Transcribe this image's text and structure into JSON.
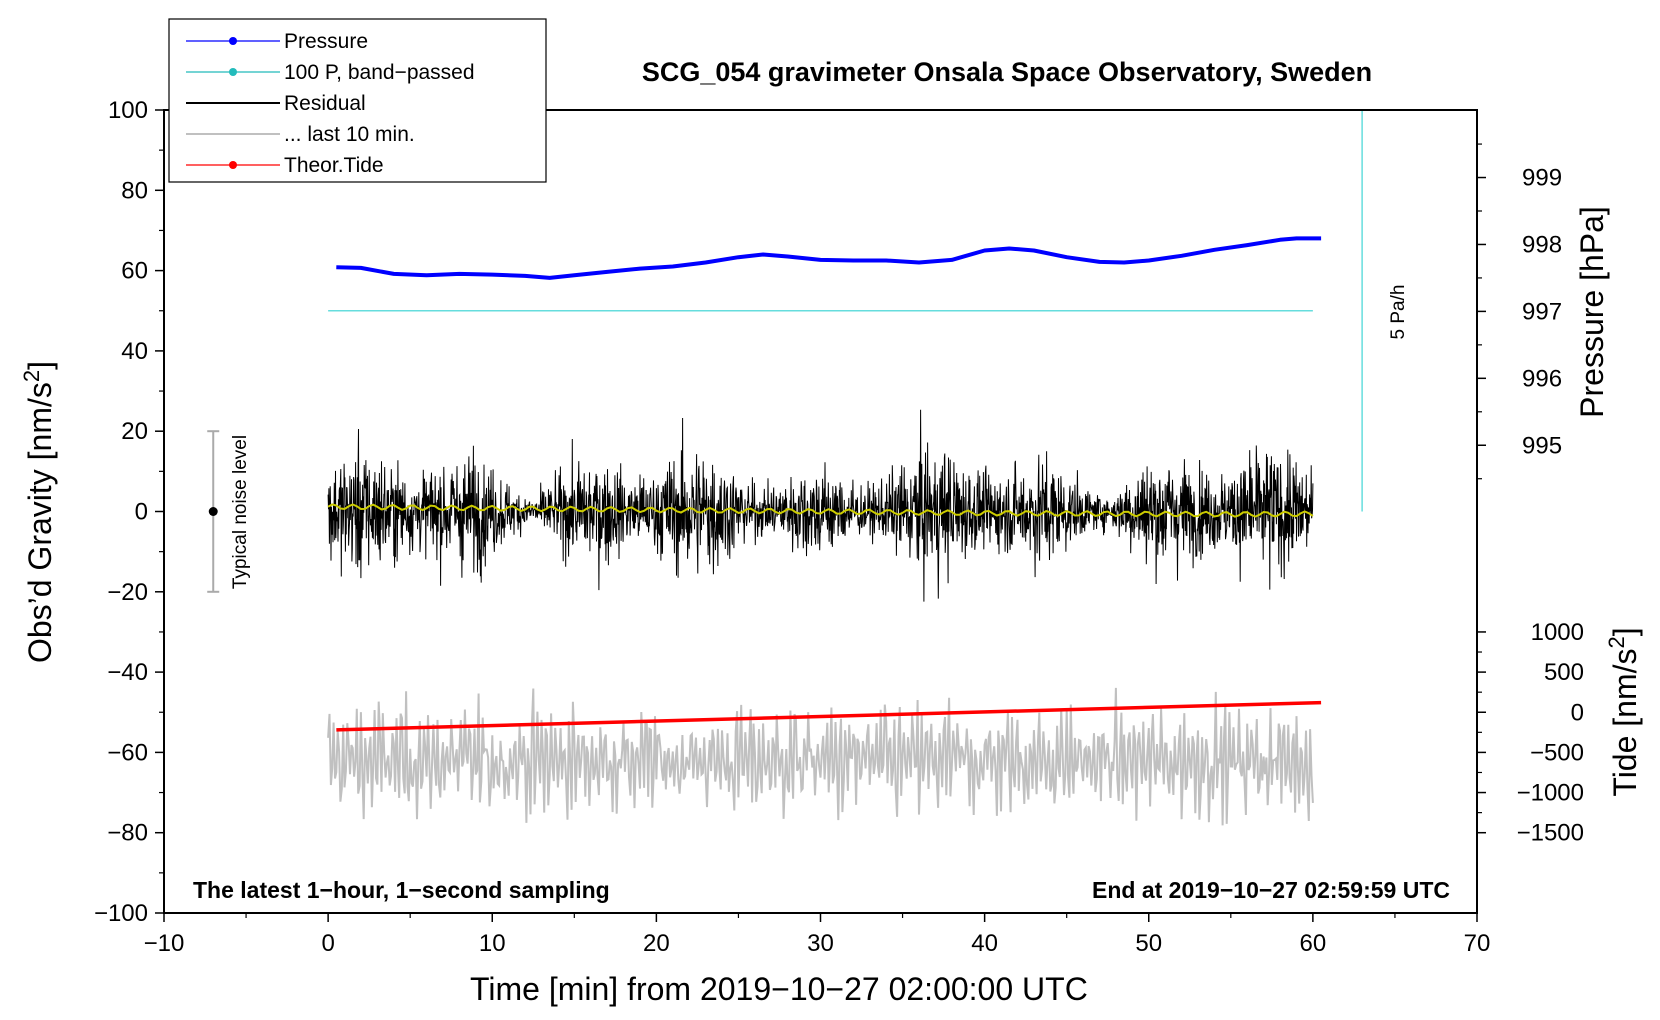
{
  "chart_data": {
    "type": "line",
    "title": "SCG_054 gravimeter Onsala Space Observatory, Sweden",
    "xlabel": "Time [min] from 2019−10−27 02:00:00 UTC",
    "ylabel": "Obs’d Gravity [nm/s",
    "ylabel_sup": "2",
    "ylabel_end": "]",
    "y2label_pressure": "Pressure [hPa]",
    "y2label_tide": "Tide [nm/s",
    "y2label_tide_sup": "2",
    "y2label_tide_end": "]",
    "xlim": [
      -10,
      70
    ],
    "ylim": [
      -100,
      100
    ],
    "x_ticks": [
      -10,
      0,
      10,
      20,
      30,
      40,
      50,
      60,
      70
    ],
    "x_tick_labels": [
      "−10",
      "0",
      "10",
      "20",
      "30",
      "40",
      "50",
      "60",
      "70"
    ],
    "y_ticks": [
      -100,
      -80,
      -60,
      -40,
      -20,
      0,
      20,
      40,
      60,
      80,
      100
    ],
    "y_tick_labels": [
      "−100",
      "−80",
      "−60",
      "−40",
      "−20",
      "0",
      "20",
      "40",
      "60",
      "80",
      "100"
    ],
    "pressure_axis": {
      "ticks": [
        995,
        996,
        997,
        998,
        999
      ],
      "tick_labels": [
        "995",
        "996",
        "997",
        "998",
        "999"
      ],
      "gravity_at_995": 16.5,
      "gravity_per_hPa": 16.67
    },
    "tide_axis": {
      "ticks": [
        -1500,
        -1000,
        -500,
        0,
        500,
        1000
      ],
      "tick_labels": [
        "−1500",
        "−1000",
        "−500",
        "0",
        "500",
        "1000"
      ],
      "gravity_at_0": -50,
      "gravity_per_unit": 0.02
    },
    "series": [
      {
        "name": "Pressure",
        "color": "#0000ff",
        "unit": "hPa",
        "x": [
          0.5,
          2,
          4,
          6,
          8,
          10,
          12,
          13.5,
          15,
          17,
          19,
          21,
          23,
          25,
          26.5,
          28,
          30,
          32,
          34,
          36,
          38,
          40,
          41.5,
          43,
          45,
          47,
          48.5,
          50,
          52,
          54,
          56,
          58,
          59,
          60.5
        ],
        "values": [
          997.66,
          997.65,
          997.56,
          997.54,
          997.56,
          997.55,
          997.53,
          997.5,
          997.54,
          997.59,
          997.64,
          997.67,
          997.73,
          997.81,
          997.85,
          997.82,
          997.77,
          997.76,
          997.76,
          997.73,
          997.77,
          997.91,
          997.94,
          997.91,
          997.81,
          997.74,
          997.73,
          997.76,
          997.83,
          997.92,
          997.99,
          998.07,
          998.09,
          998.09
        ]
      },
      {
        "name": "100 P, band−passed",
        "color": "#66dddd",
        "x": [
          0,
          60
        ],
        "values": [
          50,
          50
        ]
      },
      {
        "name": "Residual",
        "color": "#000000",
        "x_range": [
          0,
          60
        ],
        "sampling": "1 second",
        "typical_amplitude": [
          -27,
          30
        ],
        "mean": 0
      },
      {
        "name": "... last 10 min.",
        "color": "#c0c0c0",
        "x_range": [
          0,
          60
        ],
        "center": -62,
        "typical_amplitude": [
          -83,
          -41
        ]
      },
      {
        "name": "Theor.Tide",
        "color": "#ff0000",
        "unit": "nm/s2",
        "x": [
          0.5,
          60.5
        ],
        "values": [
          -220,
          120
        ]
      },
      {
        "name": "Residual smoothed",
        "color": "#cccc00",
        "x": [
          0,
          5,
          10,
          15,
          20,
          25,
          30,
          35,
          40,
          45,
          50,
          55,
          60
        ],
        "values": [
          1.2,
          1.0,
          0.8,
          0.6,
          0.4,
          0.2,
          0.0,
          -0.2,
          -0.4,
          -0.5,
          -0.6,
          -0.7,
          -0.6
        ]
      }
    ],
    "legend": {
      "placement": "top-left",
      "entries": [
        {
          "label": "Pressure",
          "color": "#0000ff",
          "marker": true,
          "thin": false
        },
        {
          "label": "100 P, band−passed",
          "color": "#22bbbb",
          "marker": true,
          "thin": false
        },
        {
          "label": "Residual",
          "color": "#000000",
          "marker": false,
          "thin": false
        },
        {
          "label": "... last 10 min.",
          "color": "#c0c0c0",
          "marker": false,
          "thin": false
        },
        {
          "label": "Theor.Tide",
          "color": "#ff0000",
          "marker": true,
          "thin": false
        }
      ]
    },
    "annotations": {
      "noise_label": "Typical noise level",
      "noise_range": [
        -20,
        20
      ],
      "noise_x": -7,
      "rate_label": "5 Pa/h",
      "rate_x": 63,
      "rate_y_range": [
        0,
        100
      ],
      "bottom_left": "The latest 1−hour, 1−second sampling",
      "bottom_right": "End at 2019−10−27 02:59:59 UTC"
    }
  }
}
